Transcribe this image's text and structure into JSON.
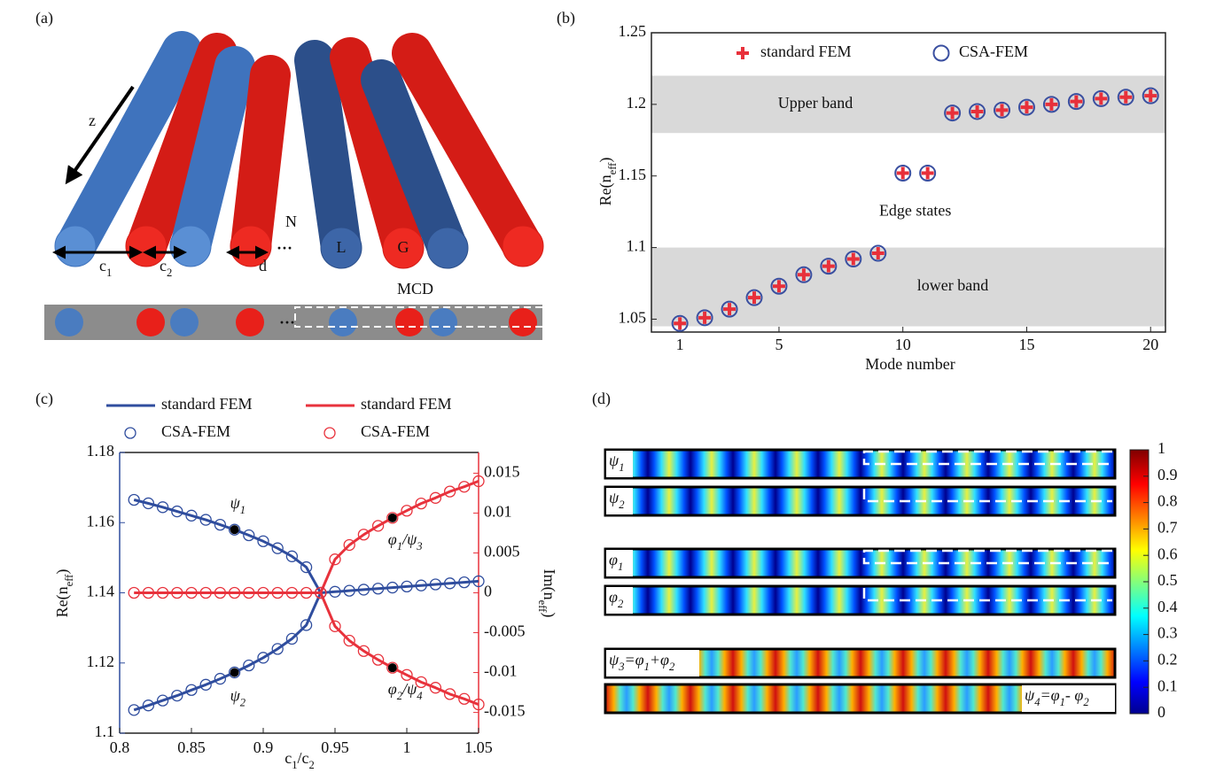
{
  "panel_labels": [
    "(a)",
    "(b)",
    "(c)",
    "(d)"
  ],
  "diagram": {
    "z": "z",
    "N": "N",
    "dots": "···",
    "c1": [
      "c",
      "1"
    ],
    "c2": [
      "c",
      "2"
    ],
    "d": "d",
    "L": "L",
    "G": "G",
    "MCD": "MCD"
  },
  "chart_data": [
    {
      "type": "scatter",
      "xlabel": "Mode number",
      "ylabel": [
        "Re(n",
        "eff",
        ")"
      ],
      "x": [
        1,
        2,
        3,
        4,
        5,
        6,
        7,
        8,
        9,
        10,
        11,
        12,
        13,
        14,
        15,
        16,
        17,
        18,
        19,
        20
      ],
      "series": [
        {
          "name": "standard FEM",
          "color": "#e8303a",
          "marker": "plus",
          "values": [
            1.047,
            1.051,
            1.057,
            1.065,
            1.073,
            1.081,
            1.087,
            1.092,
            1.096,
            1.152,
            1.152,
            1.194,
            1.195,
            1.196,
            1.198,
            1.2,
            1.202,
            1.204,
            1.205,
            1.206
          ]
        },
        {
          "name": "CSA-FEM",
          "color": "#3a4fa0",
          "marker": "circle",
          "values": [
            1.047,
            1.051,
            1.057,
            1.065,
            1.073,
            1.081,
            1.087,
            1.092,
            1.096,
            1.152,
            1.152,
            1.194,
            1.195,
            1.196,
            1.198,
            1.2,
            1.202,
            1.204,
            1.205,
            1.206
          ]
        }
      ],
      "xlim": [
        -0.15,
        20.6
      ],
      "ylim": [
        1.041,
        1.25
      ],
      "xticks": [
        1,
        5,
        10,
        15,
        20
      ],
      "yticks": [
        1.05,
        1.1,
        1.15,
        1.2,
        1.25
      ],
      "bands": [
        {
          "label": "Upper band",
          "range": [
            1.18,
            1.22
          ]
        },
        {
          "label": "lower band",
          "range": [
            1.045,
            1.1
          ]
        }
      ],
      "annotations": [
        {
          "text": "Edge states",
          "x": 10.5,
          "y": 1.141
        }
      ]
    },
    {
      "type": "line",
      "xlabel": [
        "c",
        "1",
        "/c",
        "2"
      ],
      "ylabel": [
        "Re(n",
        "eff",
        ")"
      ],
      "y2label": [
        "Im(n",
        "eff",
        ")"
      ],
      "x": [
        0.81,
        0.82,
        0.83,
        0.84,
        0.85,
        0.86,
        0.87,
        0.88,
        0.89,
        0.9,
        0.91,
        0.92,
        0.93,
        0.94,
        0.95,
        0.96,
        0.97,
        0.98,
        0.99,
        1,
        1.01,
        1.02,
        1.03,
        1.04,
        1.05
      ],
      "series": [
        {
          "name": "standard FEM",
          "color": "#2f4d9e",
          "axis": "y",
          "style": "line",
          "branches": [
            [
              1.1665,
              1.1655,
              1.1644,
              1.1632,
              1.162,
              1.1608,
              1.1594,
              1.158,
              1.1564,
              1.1547,
              1.1527,
              1.1504,
              1.1473,
              1.14,
              1.1403,
              1.1406,
              1.1409,
              1.1412,
              1.1415,
              1.1418,
              1.1421,
              1.1424,
              1.1427,
              1.143,
              1.1433
            ],
            [
              1.1066,
              1.1079,
              1.1093,
              1.1107,
              1.1123,
              1.1138,
              1.1155,
              1.1173,
              1.1193,
              1.1215,
              1.124,
              1.1269,
              1.1308,
              1.14,
              null,
              null,
              null,
              null,
              null,
              null,
              null,
              null,
              null,
              null,
              null
            ]
          ]
        },
        {
          "name": "standard FEM",
          "color": "#e8323c",
          "axis": "y2",
          "style": "line",
          "branches": [
            [
              0,
              0,
              0,
              0,
              0,
              0,
              0,
              0,
              0,
              0,
              0,
              0,
              0,
              0,
              0.0042,
              0.006,
              0.0073,
              0.0084,
              0.0094,
              0.0103,
              0.0112,
              0.0119,
              0.0127,
              0.0133,
              0.014
            ],
            [
              null,
              null,
              null,
              null,
              null,
              null,
              null,
              null,
              null,
              null,
              null,
              null,
              null,
              0,
              -0.0042,
              -0.006,
              -0.0073,
              -0.0084,
              -0.0094,
              -0.0103,
              -0.0112,
              -0.0119,
              -0.0127,
              -0.0133,
              -0.014
            ]
          ]
        },
        {
          "name": "CSA-FEM",
          "color": "#2f4d9e",
          "axis": "y",
          "style": "circle",
          "branches": [
            [
              1.1665,
              1.1655,
              1.1644,
              1.1632,
              1.162,
              1.1608,
              1.1594,
              1.158,
              1.1564,
              1.1547,
              1.1527,
              1.1504,
              1.1473,
              1.14,
              1.1403,
              1.1406,
              1.1409,
              1.1412,
              1.1415,
              1.1418,
              1.1421,
              1.1424,
              1.1427,
              1.143,
              1.1433
            ],
            [
              1.1066,
              1.1079,
              1.1093,
              1.1107,
              1.1123,
              1.1138,
              1.1155,
              1.1173,
              1.1193,
              1.1215,
              1.124,
              1.1269,
              1.1308,
              1.14,
              null,
              null,
              null,
              null,
              null,
              null,
              null,
              null,
              null,
              null,
              null
            ]
          ]
        },
        {
          "name": "CSA-FEM",
          "color": "#e8323c",
          "axis": "y2",
          "style": "circle",
          "branches": [
            [
              0,
              0,
              0,
              0,
              0,
              0,
              0,
              0,
              0,
              0,
              0,
              0,
              0,
              0,
              0.0042,
              0.006,
              0.0073,
              0.0084,
              0.0094,
              0.0103,
              0.0112,
              0.0119,
              0.0127,
              0.0133,
              0.014
            ],
            [
              null,
              null,
              null,
              null,
              null,
              null,
              null,
              null,
              null,
              null,
              null,
              null,
              null,
              0,
              -0.0042,
              -0.006,
              -0.0073,
              -0.0084,
              -0.0094,
              -0.0103,
              -0.0112,
              -0.0119,
              -0.0127,
              -0.0133,
              -0.014
            ]
          ]
        }
      ],
      "xlim": [
        0.8,
        1.05
      ],
      "ylim": [
        1.1,
        1.18
      ],
      "y2lim": [
        -0.0176,
        0.0176
      ],
      "xticks": [
        0.8,
        0.85,
        0.9,
        0.95,
        1,
        1.05
      ],
      "yticks": [
        1.1,
        1.12,
        1.14,
        1.16,
        1.18
      ],
      "y2ticks": [
        -0.015,
        -0.01,
        -0.005,
        0,
        0.005,
        0.01,
        0.015
      ],
      "annotations": [
        {
          "text": [
            "ψ",
            "1"
          ],
          "x": 0.88,
          "y": 1.158,
          "axis": "y"
        },
        {
          "text": [
            "ψ",
            "2"
          ],
          "x": 0.88,
          "y": 1.1173,
          "axis": "y"
        },
        {
          "text": [
            "φ",
            "1",
            "/ψ",
            "3"
          ],
          "x": 0.99,
          "y": 0.0094,
          "axis": "y2"
        },
        {
          "text": [
            "φ",
            "2",
            "/ψ",
            "4"
          ],
          "x": 0.99,
          "y": -0.0094,
          "axis": "y2"
        }
      ]
    }
  ],
  "field_maps": {
    "rows": [
      [
        "ψ",
        "1"
      ],
      [
        "ψ",
        "2"
      ],
      [
        "φ",
        "1"
      ],
      [
        "φ",
        "2"
      ],
      [
        "ψ",
        "3",
        "=φ",
        "1",
        "+φ",
        "2"
      ],
      [
        "ψ",
        "4",
        "=φ",
        "1",
        "- φ",
        "2"
      ]
    ],
    "colorbar_ticks": [
      0,
      0.1,
      0.2,
      0.3,
      0.4,
      0.5,
      0.6,
      0.7,
      0.8,
      0.9,
      1
    ]
  }
}
